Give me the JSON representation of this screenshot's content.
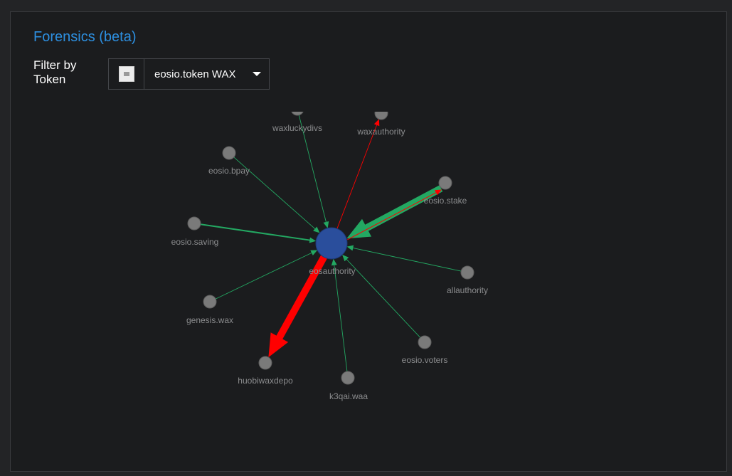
{
  "header": {
    "title": "Forensics (beta)"
  },
  "filter": {
    "label": "Filter by Token",
    "selected": "eosio.token WAX",
    "icon": "token-logo-icon",
    "dropdown_icon": "chevron-down-icon"
  },
  "graph": {
    "center_node": {
      "name": "eosauthority",
      "color": "#2a4e9c"
    },
    "node_color": "#7a7a7a",
    "incoming_color": "#23a862",
    "outgoing_color": "#ff0000",
    "nodes": [
      {
        "name": "waxluckydivs"
      },
      {
        "name": "waxauthority"
      },
      {
        "name": "eosio.bpay"
      },
      {
        "name": "eosio.stake"
      },
      {
        "name": "eosio.saving"
      },
      {
        "name": "allauthority"
      },
      {
        "name": "genesis.wax"
      },
      {
        "name": "eosio.voters"
      },
      {
        "name": "huobiwaxdepo"
      },
      {
        "name": "k3qai.waa"
      }
    ],
    "edges": [
      {
        "from": "waxluckydivs",
        "to": "eosauthority",
        "type": "in"
      },
      {
        "from": "eosauthority",
        "to": "waxauthority",
        "type": "out"
      },
      {
        "from": "eosio.bpay",
        "to": "eosauthority",
        "type": "in"
      },
      {
        "from": "eosio.stake",
        "to": "eosauthority",
        "type": "in"
      },
      {
        "from": "eosauthority",
        "to": "eosio.stake",
        "type": "out"
      },
      {
        "from": "eosio.saving",
        "to": "eosauthority",
        "type": "in"
      },
      {
        "from": "allauthority",
        "to": "eosauthority",
        "type": "in"
      },
      {
        "from": "genesis.wax",
        "to": "eosauthority",
        "type": "in"
      },
      {
        "from": "eosio.voters",
        "to": "eosauthority",
        "type": "in"
      },
      {
        "from": "eosauthority",
        "to": "huobiwaxdepo",
        "type": "out"
      },
      {
        "from": "k3qai.waa",
        "to": "eosauthority",
        "type": "in"
      }
    ]
  }
}
